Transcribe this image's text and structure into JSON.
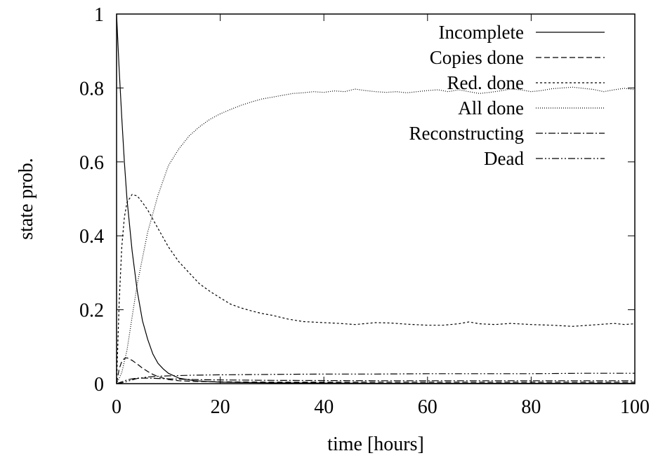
{
  "chart_data": {
    "type": "line",
    "title": "",
    "xlabel": "time [hours]",
    "ylabel": "state prob.",
    "xlim": [
      0,
      100
    ],
    "ylim": [
      0,
      1
    ],
    "x_ticks": [
      "0",
      "20",
      "40",
      "60",
      "80",
      "100"
    ],
    "y_ticks": [
      "0",
      "0.2",
      "0.4",
      "0.6",
      "0.8",
      "1"
    ],
    "grid": false,
    "legend_position": "top-right",
    "series": [
      {
        "name": "Incomplete",
        "dash": "",
        "points": [
          [
            0,
            1.0
          ],
          [
            0.5,
            0.85
          ],
          [
            1,
            0.72
          ],
          [
            1.5,
            0.6
          ],
          [
            2,
            0.5
          ],
          [
            3,
            0.36
          ],
          [
            4,
            0.25
          ],
          [
            5,
            0.17
          ],
          [
            6,
            0.12
          ],
          [
            7,
            0.08
          ],
          [
            8,
            0.055
          ],
          [
            9,
            0.04
          ],
          [
            10,
            0.028
          ],
          [
            12,
            0.015
          ],
          [
            15,
            0.008
          ],
          [
            20,
            0.004
          ],
          [
            30,
            0.002
          ],
          [
            50,
            0.001
          ],
          [
            100,
            0.001
          ]
        ]
      },
      {
        "name": "Copies done",
        "dash": "8,4",
        "points": [
          [
            0,
            0
          ],
          [
            0.5,
            0.04
          ],
          [
            1,
            0.06
          ],
          [
            1.5,
            0.068
          ],
          [
            2,
            0.07
          ],
          [
            3,
            0.063
          ],
          [
            4,
            0.053
          ],
          [
            5,
            0.042
          ],
          [
            6,
            0.033
          ],
          [
            7,
            0.025
          ],
          [
            8,
            0.019
          ],
          [
            10,
            0.011
          ],
          [
            12,
            0.008
          ],
          [
            15,
            0.006
          ],
          [
            20,
            0.005
          ],
          [
            30,
            0.004
          ],
          [
            50,
            0.004
          ],
          [
            100,
            0.004
          ]
        ]
      },
      {
        "name": "Red. done",
        "dash": "3,3",
        "points": [
          [
            0,
            0
          ],
          [
            0.5,
            0.22
          ],
          [
            1,
            0.37
          ],
          [
            1.5,
            0.45
          ],
          [
            2,
            0.49
          ],
          [
            3,
            0.512
          ],
          [
            4,
            0.508
          ],
          [
            5,
            0.49
          ],
          [
            6,
            0.47
          ],
          [
            8,
            0.42
          ],
          [
            10,
            0.37
          ],
          [
            12,
            0.33
          ],
          [
            14,
            0.3
          ],
          [
            16,
            0.27
          ],
          [
            18,
            0.25
          ],
          [
            20,
            0.232
          ],
          [
            22,
            0.215
          ],
          [
            24,
            0.205
          ],
          [
            26,
            0.197
          ],
          [
            28,
            0.19
          ],
          [
            30,
            0.185
          ],
          [
            33,
            0.175
          ],
          [
            36,
            0.168
          ],
          [
            40,
            0.165
          ],
          [
            43,
            0.163
          ],
          [
            46,
            0.16
          ],
          [
            50,
            0.165
          ],
          [
            53,
            0.164
          ],
          [
            56,
            0.161
          ],
          [
            60,
            0.158
          ],
          [
            63,
            0.158
          ],
          [
            66,
            0.162
          ],
          [
            68,
            0.167
          ],
          [
            70,
            0.162
          ],
          [
            73,
            0.16
          ],
          [
            76,
            0.163
          ],
          [
            80,
            0.16
          ],
          [
            84,
            0.158
          ],
          [
            88,
            0.155
          ],
          [
            90,
            0.157
          ],
          [
            93,
            0.16
          ],
          [
            96,
            0.163
          ],
          [
            98,
            0.16
          ],
          [
            100,
            0.162
          ]
        ]
      },
      {
        "name": "All done",
        "dash": "1,2",
        "points": [
          [
            0,
            0
          ],
          [
            1,
            0.03
          ],
          [
            2,
            0.09
          ],
          [
            3,
            0.18
          ],
          [
            4,
            0.27
          ],
          [
            5,
            0.34
          ],
          [
            6,
            0.41
          ],
          [
            7,
            0.46
          ],
          [
            8,
            0.51
          ],
          [
            9,
            0.55
          ],
          [
            10,
            0.59
          ],
          [
            12,
            0.635
          ],
          [
            14,
            0.67
          ],
          [
            16,
            0.695
          ],
          [
            18,
            0.715
          ],
          [
            20,
            0.73
          ],
          [
            22,
            0.742
          ],
          [
            24,
            0.753
          ],
          [
            26,
            0.762
          ],
          [
            28,
            0.77
          ],
          [
            30,
            0.775
          ],
          [
            32,
            0.78
          ],
          [
            34,
            0.785
          ],
          [
            36,
            0.787
          ],
          [
            38,
            0.79
          ],
          [
            40,
            0.788
          ],
          [
            42,
            0.792
          ],
          [
            44,
            0.79
          ],
          [
            46,
            0.797
          ],
          [
            48,
            0.793
          ],
          [
            50,
            0.79
          ],
          [
            52,
            0.788
          ],
          [
            54,
            0.79
          ],
          [
            56,
            0.787
          ],
          [
            58,
            0.79
          ],
          [
            60,
            0.793
          ],
          [
            62,
            0.795
          ],
          [
            64,
            0.79
          ],
          [
            66,
            0.795
          ],
          [
            68,
            0.79
          ],
          [
            70,
            0.785
          ],
          [
            72,
            0.788
          ],
          [
            74,
            0.792
          ],
          [
            76,
            0.797
          ],
          [
            78,
            0.795
          ],
          [
            80,
            0.79
          ],
          [
            82,
            0.793
          ],
          [
            84,
            0.798
          ],
          [
            86,
            0.8
          ],
          [
            88,
            0.802
          ],
          [
            90,
            0.799
          ],
          [
            92,
            0.796
          ],
          [
            94,
            0.79
          ],
          [
            96,
            0.795
          ],
          [
            98,
            0.799
          ],
          [
            100,
            0.795
          ]
        ]
      },
      {
        "name": "Reconstructing",
        "dash": "10,3,2,3",
        "points": [
          [
            0,
            0
          ],
          [
            1,
            0.005
          ],
          [
            2,
            0.01
          ],
          [
            3,
            0.013
          ],
          [
            4,
            0.015
          ],
          [
            5,
            0.015
          ],
          [
            6,
            0.015
          ],
          [
            8,
            0.014
          ],
          [
            10,
            0.013
          ],
          [
            15,
            0.011
          ],
          [
            20,
            0.01
          ],
          [
            30,
            0.009
          ],
          [
            50,
            0.008
          ],
          [
            100,
            0.008
          ]
        ]
      },
      {
        "name": "Dead",
        "dash": "10,3,2,3,2,3",
        "points": [
          [
            0,
            0
          ],
          [
            1,
            0.002
          ],
          [
            2,
            0.006
          ],
          [
            3,
            0.01
          ],
          [
            4,
            0.014
          ],
          [
            6,
            0.018
          ],
          [
            8,
            0.02
          ],
          [
            10,
            0.021
          ],
          [
            15,
            0.023
          ],
          [
            20,
            0.024
          ],
          [
            30,
            0.025
          ],
          [
            40,
            0.026
          ],
          [
            50,
            0.026
          ],
          [
            60,
            0.027
          ],
          [
            70,
            0.027
          ],
          [
            80,
            0.027
          ],
          [
            90,
            0.028
          ],
          [
            100,
            0.028
          ]
        ]
      }
    ]
  }
}
